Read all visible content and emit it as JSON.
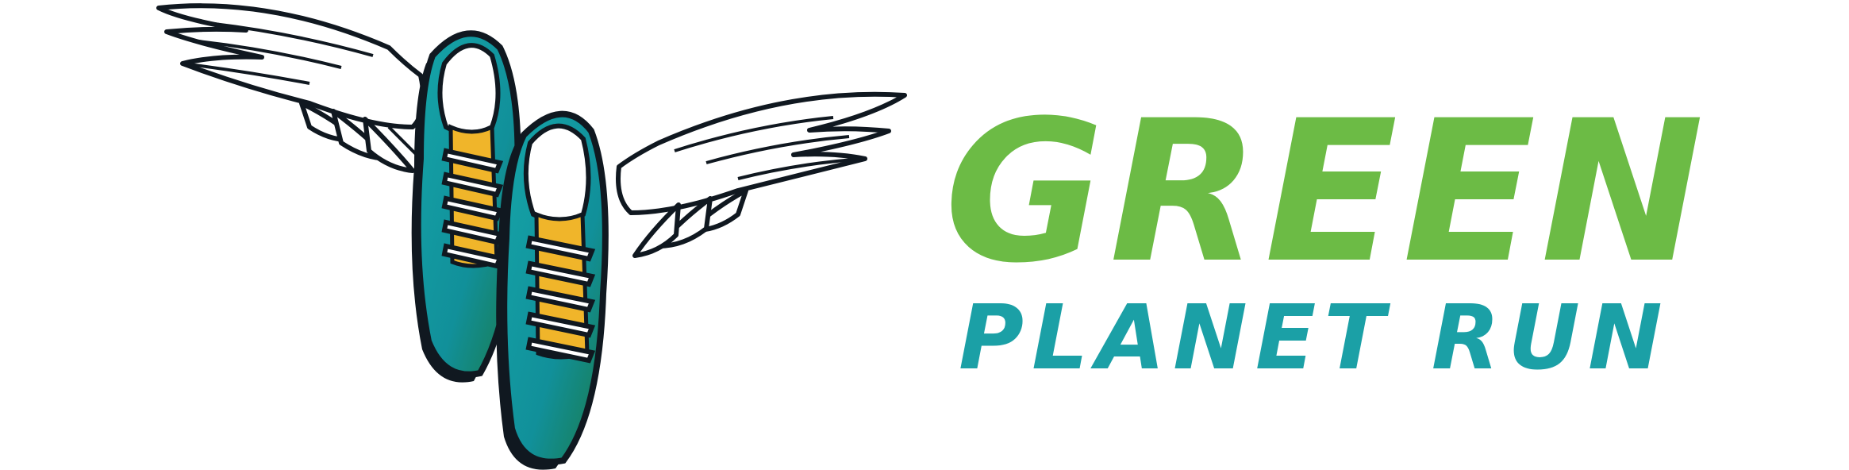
{
  "brand": {
    "title_line1": "GREEN",
    "title_line2": "PLANET RUN",
    "colors": {
      "green": "#6cbb45",
      "teal": "#1ba0a6",
      "outline": "#101820",
      "sole_yellow": "#f0b52a",
      "shoe_teal": "#14929c",
      "shoe_green": "#1a7a4a"
    },
    "logo_icon": "winged-running-shoes-icon"
  }
}
